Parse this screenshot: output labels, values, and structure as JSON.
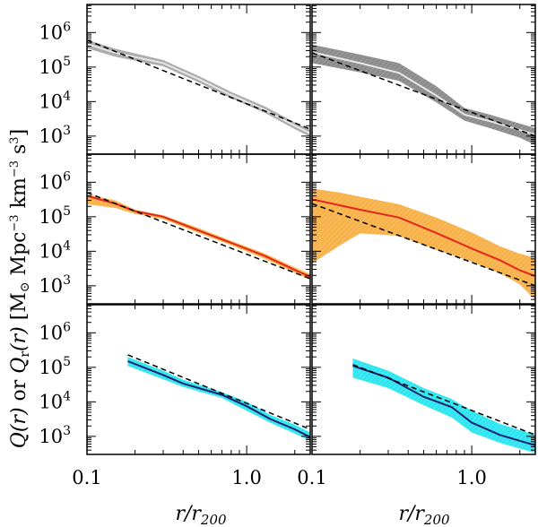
{
  "chart_data": {
    "type": "line",
    "layout": "3 rows x 2 columns, shared axes",
    "xscale": "log",
    "yscale": "log",
    "xlim": [
      0.1,
      2.5
    ],
    "ylim": [
      300,
      6500000
    ],
    "xticks": [
      {
        "value": 0.1,
        "label": "0.1"
      },
      {
        "value": 1.0,
        "label": "1.0"
      }
    ],
    "yticks": [
      {
        "value": 1000,
        "base": "10",
        "exp": "3"
      },
      {
        "value": 10000,
        "base": "10",
        "exp": "4"
      },
      {
        "value": 100000,
        "base": "10",
        "exp": "5"
      },
      {
        "value": 1000000,
        "base": "10",
        "exp": "6"
      }
    ],
    "xlabel": {
      "main": "r/r",
      "sub": "200"
    },
    "ylabel": {
      "q": "Q(r)",
      "or": " or ",
      "qr": "Q",
      "qr_sub": "r",
      "qr_arg": "(r)",
      "units_open": " [M",
      "sun_symbol": "⊙",
      "units_mid": " Mpc",
      "units_exp": "−3",
      "units_km": " km",
      "units_exp2": "−3",
      "units_s": " s",
      "units_exp3": "3",
      "units_close": "]"
    },
    "panels": [
      {
        "id": "top-left",
        "row": 0,
        "col": 0,
        "band_color": "#a9a9a9",
        "line_color": "#e6e6e6",
        "line_width": 2,
        "band": [
          {
            "x": 0.1,
            "lo": 350000,
            "hi": 620000
          },
          {
            "x": 0.15,
            "lo": 200000,
            "hi": 340000
          },
          {
            "x": 0.3,
            "lo": 105000,
            "hi": 160000
          },
          {
            "x": 0.5,
            "lo": 36000,
            "hi": 55000
          },
          {
            "x": 0.8,
            "lo": 12500,
            "hi": 19000
          },
          {
            "x": 1.3,
            "lo": 4700,
            "hi": 7200
          },
          {
            "x": 2.0,
            "lo": 1600,
            "hi": 2500
          },
          {
            "x": 2.5,
            "lo": 950,
            "hi": 1500
          }
        ],
        "line": [
          {
            "x": 0.1,
            "y": 470000
          },
          {
            "x": 0.15,
            "y": 260000
          },
          {
            "x": 0.3,
            "y": 130000
          },
          {
            "x": 0.5,
            "y": 45000
          },
          {
            "x": 0.8,
            "y": 15500
          },
          {
            "x": 1.3,
            "y": 5800
          },
          {
            "x": 2.0,
            "y": 2000
          },
          {
            "x": 2.5,
            "y": 1200
          }
        ],
        "fit": {
          "x0": 0.1,
          "y0": 600000,
          "x1": 2.5,
          "y1": 1600
        }
      },
      {
        "id": "top-right",
        "row": 0,
        "col": 1,
        "band_color": "#8c8c8c",
        "line_color": "#e6e6e6",
        "line_width": 2,
        "band": [
          {
            "x": 0.1,
            "lo": 130000,
            "hi": 450000
          },
          {
            "x": 0.2,
            "lo": 70000,
            "hi": 230000
          },
          {
            "x": 0.35,
            "lo": 40000,
            "hi": 130000
          },
          {
            "x": 0.6,
            "lo": 9500,
            "hi": 28000
          },
          {
            "x": 0.9,
            "lo": 2800,
            "hi": 6500
          },
          {
            "x": 1.3,
            "lo": 1700,
            "hi": 4200
          },
          {
            "x": 2.0,
            "lo": 900,
            "hi": 2300
          },
          {
            "x": 2.5,
            "lo": 550,
            "hi": 1700
          }
        ],
        "line": [
          {
            "x": 0.1,
            "y": 270000
          },
          {
            "x": 0.2,
            "y": 130000
          },
          {
            "x": 0.35,
            "y": 68000
          },
          {
            "x": 0.6,
            "y": 15000
          },
          {
            "x": 0.9,
            "y": 4200
          },
          {
            "x": 1.3,
            "y": 2700
          },
          {
            "x": 2.0,
            "y": 1500
          },
          {
            "x": 2.5,
            "y": 1100
          }
        ],
        "fit": {
          "x0": 0.1,
          "y0": 260000,
          "x1": 2.5,
          "y1": 1000
        }
      },
      {
        "id": "middle-left",
        "row": 1,
        "col": 0,
        "band_color": "#f7b24a",
        "line_color": "#e3261c",
        "line_width": 2,
        "band": [
          {
            "x": 0.1,
            "lo": 230000,
            "hi": 440000
          },
          {
            "x": 0.15,
            "lo": 180000,
            "hi": 300000
          },
          {
            "x": 0.2,
            "lo": 120000,
            "hi": 160000
          },
          {
            "x": 0.3,
            "lo": 85000,
            "hi": 110000
          },
          {
            "x": 0.5,
            "lo": 34000,
            "hi": 47000
          },
          {
            "x": 0.8,
            "lo": 15000,
            "hi": 20000
          },
          {
            "x": 1.3,
            "lo": 6000,
            "hi": 8600
          },
          {
            "x": 2.0,
            "lo": 2400,
            "hi": 3400
          },
          {
            "x": 2.5,
            "lo": 1500,
            "hi": 2200
          }
        ],
        "line": [
          {
            "x": 0.1,
            "y": 400000
          },
          {
            "x": 0.15,
            "y": 240000
          },
          {
            "x": 0.2,
            "y": 145000
          },
          {
            "x": 0.3,
            "y": 100000
          },
          {
            "x": 0.5,
            "y": 40000
          },
          {
            "x": 0.8,
            "y": 17500
          },
          {
            "x": 1.3,
            "y": 7300
          },
          {
            "x": 2.0,
            "y": 2900
          },
          {
            "x": 2.5,
            "y": 1800
          }
        ],
        "fit": {
          "x0": 0.1,
          "y0": 500000,
          "x1": 2.5,
          "y1": 1600
        }
      },
      {
        "id": "middle-right",
        "row": 1,
        "col": 1,
        "band_color": "#f7b24a",
        "line_color": "#e3261c",
        "line_width": 2,
        "band": [
          {
            "x": 0.1,
            "lo": 4500,
            "hi": 650000
          },
          {
            "x": 0.15,
            "lo": 15000,
            "hi": 500000
          },
          {
            "x": 0.2,
            "lo": 33000,
            "hi": 380000
          },
          {
            "x": 0.35,
            "lo": 28000,
            "hi": 230000
          },
          {
            "x": 0.6,
            "lo": 11000,
            "hi": 95000
          },
          {
            "x": 1.0,
            "lo": 5000,
            "hi": 35000
          },
          {
            "x": 1.5,
            "lo": 2300,
            "hi": 14000
          },
          {
            "x": 2.0,
            "lo": 1100,
            "hi": 8500
          },
          {
            "x": 2.5,
            "lo": 380,
            "hi": 6500
          }
        ],
        "line": [
          {
            "x": 0.1,
            "y": 320000
          },
          {
            "x": 0.2,
            "y": 160000
          },
          {
            "x": 0.35,
            "y": 95000
          },
          {
            "x": 0.6,
            "y": 34000
          },
          {
            "x": 1.0,
            "y": 12000
          },
          {
            "x": 1.5,
            "y": 5500
          },
          {
            "x": 2.0,
            "y": 2800
          },
          {
            "x": 2.5,
            "y": 1900
          }
        ],
        "fit": {
          "x0": 0.1,
          "y0": 240000,
          "x1": 2.5,
          "y1": 1000
        }
      },
      {
        "id": "bottom-left",
        "row": 2,
        "col": 0,
        "band_color": "#2fe6f0",
        "line_color": "#1a1f6e",
        "line_width": 2,
        "band": [
          {
            "x": 0.18,
            "lo": 110000,
            "hi": 200000
          },
          {
            "x": 0.3,
            "lo": 45000,
            "hi": 80000
          },
          {
            "x": 0.4,
            "lo": 27000,
            "hi": 44000
          },
          {
            "x": 0.7,
            "lo": 13000,
            "hi": 19000
          },
          {
            "x": 1.0,
            "lo": 5500,
            "hi": 10000
          },
          {
            "x": 1.4,
            "lo": 2500,
            "hi": 4200
          },
          {
            "x": 2.0,
            "lo": 1200,
            "hi": 2200
          },
          {
            "x": 2.5,
            "lo": 750,
            "hi": 1300
          }
        ],
        "line": [
          {
            "x": 0.18,
            "y": 150000
          },
          {
            "x": 0.3,
            "y": 60000
          },
          {
            "x": 0.4,
            "y": 34000
          },
          {
            "x": 0.7,
            "y": 16000
          },
          {
            "x": 1.0,
            "y": 7500
          },
          {
            "x": 1.4,
            "y": 3200
          },
          {
            "x": 2.0,
            "y": 1600
          },
          {
            "x": 2.5,
            "y": 950
          }
        ],
        "fit": {
          "x0": 0.18,
          "y0": 230000,
          "x1": 2.5,
          "y1": 1600
        }
      },
      {
        "id": "bottom-right",
        "row": 2,
        "col": 1,
        "band_color": "#2fe6f0",
        "line_color": "#1a1f6e",
        "line_width": 2,
        "band": [
          {
            "x": 0.18,
            "lo": 50000,
            "hi": 180000
          },
          {
            "x": 0.3,
            "lo": 25000,
            "hi": 80000
          },
          {
            "x": 0.5,
            "lo": 8000,
            "hi": 25000
          },
          {
            "x": 0.75,
            "lo": 3500,
            "hi": 12000
          },
          {
            "x": 1.0,
            "lo": 1300,
            "hi": 5500
          },
          {
            "x": 1.5,
            "lo": 650,
            "hi": 2300
          },
          {
            "x": 2.5,
            "lo": 330,
            "hi": 1100
          }
        ],
        "line": [
          {
            "x": 0.18,
            "y": 110000
          },
          {
            "x": 0.3,
            "y": 50000
          },
          {
            "x": 0.5,
            "y": 14000
          },
          {
            "x": 0.75,
            "y": 7000
          },
          {
            "x": 1.0,
            "y": 2500
          },
          {
            "x": 1.5,
            "y": 1100
          },
          {
            "x": 2.5,
            "y": 550
          }
        ],
        "fit": {
          "x0": 0.18,
          "y0": 120000,
          "x1": 2.5,
          "y1": 1100
        }
      }
    ]
  }
}
